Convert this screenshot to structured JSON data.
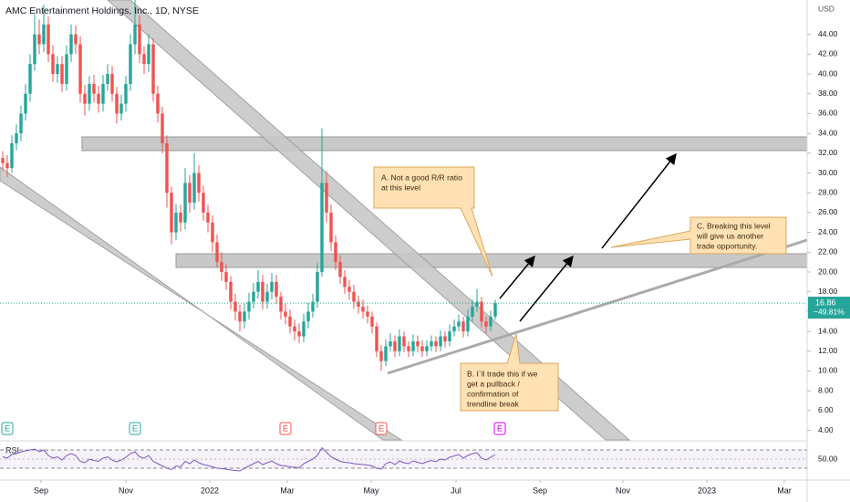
{
  "chart_data": [
    {
      "type": "candlestick",
      "title": "AMC Entertainment Holdings, Inc., 1D, NYSE",
      "currency": "USD",
      "up_color": "#26a69a",
      "down_color": "#ef5350",
      "change_label": "−49.81%",
      "xlim": [
        -0.6,
        176.4
      ],
      "xticks": [
        {
          "value": 8.4,
          "label": "Sep"
        },
        {
          "value": 27,
          "label": "Nov"
        },
        {
          "value": 45.4,
          "label": "2022"
        },
        {
          "value": 62.4,
          "label": "Mar"
        },
        {
          "value": 80.8,
          "label": "May"
        },
        {
          "value": 99.4,
          "label": "Jul"
        },
        {
          "value": 117.8,
          "label": "Sep"
        },
        {
          "value": 136,
          "label": "Nov"
        },
        {
          "value": 154.4,
          "label": "2023"
        },
        {
          "value": 171.4,
          "label": "Mar"
        }
      ],
      "ylim": [
        3.04,
        47.47
      ],
      "yticks": [
        {
          "value": 4,
          "label": "4.00"
        },
        {
          "value": 6,
          "label": "6.00"
        },
        {
          "value": 8,
          "label": "8.00"
        },
        {
          "value": 10,
          "label": "10.00"
        },
        {
          "value": 12,
          "label": "12.00"
        },
        {
          "value": 14,
          "label": "14.00"
        },
        {
          "value": 16,
          "label": "16.00"
        },
        {
          "value": 18,
          "label": "18.00"
        },
        {
          "value": 20,
          "label": "20.00"
        },
        {
          "value": 22,
          "label": "22.00"
        },
        {
          "value": 24,
          "label": "24.00"
        },
        {
          "value": 26,
          "label": "26.00"
        },
        {
          "value": 28,
          "label": "28.00"
        },
        {
          "value": 30,
          "label": "30.00"
        },
        {
          "value": 32,
          "label": "32.00"
        },
        {
          "value": 34,
          "label": "34.00"
        },
        {
          "value": 36,
          "label": "36.00"
        },
        {
          "value": 38,
          "label": "38.00"
        },
        {
          "value": 40,
          "label": "40.00"
        },
        {
          "value": 42,
          "label": "42.00"
        },
        {
          "value": 44,
          "label": "44.00"
        }
      ],
      "open": [
        31.5,
        31,
        30.5,
        33,
        34,
        36,
        38,
        41,
        44,
        43,
        45,
        42,
        40,
        41,
        39,
        42,
        44,
        43,
        38,
        37,
        39,
        38,
        37,
        39,
        40,
        38,
        36,
        37,
        39,
        43,
        45,
        42,
        41,
        43,
        38,
        36,
        33,
        28,
        24,
        26,
        25,
        29,
        27,
        30,
        28,
        26,
        25,
        23,
        21,
        20,
        19,
        17,
        16,
        15,
        16,
        17,
        18,
        19,
        17,
        18,
        19,
        17.5,
        16,
        15.5,
        14.5,
        14,
        13.5,
        15,
        16,
        17,
        20,
        29,
        26,
        23,
        21,
        19.5,
        18.5,
        18,
        17,
        16.5,
        16,
        15.5,
        14.5,
        12,
        11,
        12.5,
        13,
        12,
        13.5,
        12.5,
        12,
        13,
        12.5,
        12,
        12.5,
        13,
        12.5,
        13.5,
        13,
        14,
        14.5,
        15,
        14,
        15.5,
        16.5,
        17,
        15,
        14.5,
        15.5
      ],
      "high": [
        32.2,
        31.8,
        33.8,
        34.9,
        36.8,
        39,
        42,
        46,
        45.5,
        47,
        45.8,
        42.9,
        41.8,
        41.8,
        42.9,
        45,
        44.9,
        43.8,
        38.9,
        39.8,
        39.9,
        38.8,
        39.9,
        41,
        40.8,
        38.7,
        37.9,
        39.8,
        44,
        47.5,
        45.9,
        42.8,
        44,
        43.6,
        38.8,
        36.7,
        33.8,
        28.6,
        26.9,
        26.8,
        30.5,
        29.8,
        32,
        30.8,
        28.7,
        26.8,
        25.7,
        23.8,
        22,
        20.8,
        19.6,
        17.8,
        16.7,
        16.8,
        17.9,
        18.9,
        20.2,
        19.7,
        18.8,
        19.9,
        19.7,
        18,
        16.8,
        16.2,
        15.2,
        14.8,
        15.8,
        16.9,
        17.8,
        20.9,
        34.5,
        30.2,
        26.8,
        23.7,
        21.7,
        20.2,
        19.2,
        18.7,
        17.6,
        17.2,
        16.6,
        16,
        14.9,
        12.6,
        13.2,
        13.8,
        13.6,
        14.2,
        14,
        13,
        13.7,
        13.6,
        13.1,
        13.1,
        13.6,
        13.5,
        14.1,
        14,
        14.7,
        15.2,
        15.7,
        15.5,
        16.2,
        17.2,
        18.3,
        17.5,
        15.5,
        16.1,
        17.2
      ],
      "low": [
        30.3,
        29.6,
        30,
        32.3,
        33.2,
        35.3,
        37.2,
        40.3,
        42,
        42.2,
        41.2,
        39.2,
        39.1,
        38.2,
        38.3,
        41.2,
        42,
        37.1,
        35.8,
        36.3,
        37.1,
        36.1,
        36.2,
        38.3,
        37.2,
        35,
        35.3,
        36.2,
        38.3,
        42,
        41.1,
        40,
        40.2,
        37.2,
        35.1,
        32,
        26.5,
        22.8,
        23.2,
        24.1,
        24.3,
        26,
        26.3,
        27.1,
        25.2,
        24,
        22,
        20.5,
        19.1,
        18.2,
        16.2,
        15.1,
        14,
        14.3,
        15.2,
        16.3,
        17.3,
        16.2,
        16.3,
        17.2,
        16.8,
        15.2,
        14.7,
        13.8,
        13.1,
        12.8,
        12.9,
        14.3,
        15.4,
        16.4,
        19.5,
        25,
        22.1,
        20.2,
        18.8,
        17.8,
        17.2,
        16.3,
        15.8,
        15.3,
        14.8,
        13.8,
        11.4,
        10,
        10.5,
        12,
        11.4,
        11.5,
        11.9,
        11.4,
        11.5,
        11.9,
        11.4,
        11.5,
        12,
        11.9,
        12,
        12.4,
        12.5,
        13.5,
        14,
        13.4,
        13.5,
        15,
        16,
        14.4,
        13.8,
        14,
        15.2
      ],
      "close": [
        31,
        30.5,
        33,
        34,
        36,
        38,
        41,
        44,
        43,
        45,
        42,
        40,
        41,
        39,
        42,
        44,
        43,
        38,
        37,
        39,
        38,
        37,
        39,
        40,
        38,
        36,
        37,
        39,
        43,
        45,
        42,
        41,
        43,
        38,
        36,
        33,
        28,
        24,
        26,
        25,
        29,
        27,
        30,
        28,
        26,
        25,
        23,
        21,
        20,
        19,
        17,
        16,
        15,
        16,
        17,
        18,
        19,
        17,
        18,
        19,
        17.5,
        16,
        15.5,
        14.5,
        14,
        13.5,
        15,
        16,
        17,
        20,
        29,
        26,
        23,
        21,
        19.5,
        18.5,
        18,
        17,
        16.5,
        16,
        15.5,
        14.5,
        12,
        11,
        12.5,
        13,
        12,
        13.5,
        12.5,
        12,
        13,
        12.5,
        12,
        12.5,
        13,
        12.5,
        13.5,
        13,
        14,
        14.5,
        15,
        14,
        15.5,
        16.5,
        17,
        15,
        14.5,
        15.5,
        16.86
      ]
    },
    {
      "type": "line",
      "name": "RSI",
      "color": "#7e57c2",
      "ylim": [
        12,
        88
      ],
      "yticks": [
        {
          "value": 50,
          "label": "50.00"
        }
      ],
      "levels": [
        70,
        30
      ],
      "values": [
        55,
        52,
        60,
        62,
        66,
        68,
        70,
        72,
        66,
        70,
        58,
        52,
        55,
        48,
        58,
        62,
        58,
        45,
        42,
        50,
        47,
        45,
        52,
        55,
        48,
        44,
        48,
        54,
        62,
        66,
        55,
        52,
        58,
        45,
        40,
        35,
        30,
        27,
        35,
        33,
        45,
        40,
        48,
        42,
        38,
        36,
        33,
        30,
        29,
        28,
        26,
        25,
        24,
        30,
        35,
        40,
        45,
        38,
        42,
        46,
        40,
        36,
        35,
        33,
        32,
        31,
        40,
        45,
        50,
        58,
        75,
        65,
        55,
        50,
        45,
        43,
        42,
        40,
        39,
        38,
        37,
        35,
        30,
        28,
        40,
        44,
        38,
        46,
        42,
        40,
        46,
        43,
        40,
        44,
        47,
        44,
        50,
        48,
        54,
        57,
        60,
        52,
        58,
        62,
        64,
        52,
        48,
        54,
        60
      ]
    }
  ],
  "earnings": [
    "E",
    "E",
    "E",
    "E",
    "E"
  ],
  "notes": [
    {
      "lines": [
        "A.  Not a good R/R ratio",
        "at this level"
      ]
    },
    {
      "lines": [
        "B. I`ll trade this if we",
        "get a pullback /",
        "confirmation of",
        "trendline break"
      ]
    },
    {
      "lines": [
        "C. Breaking this level",
        "will give us another",
        "trade opportunity."
      ]
    }
  ]
}
